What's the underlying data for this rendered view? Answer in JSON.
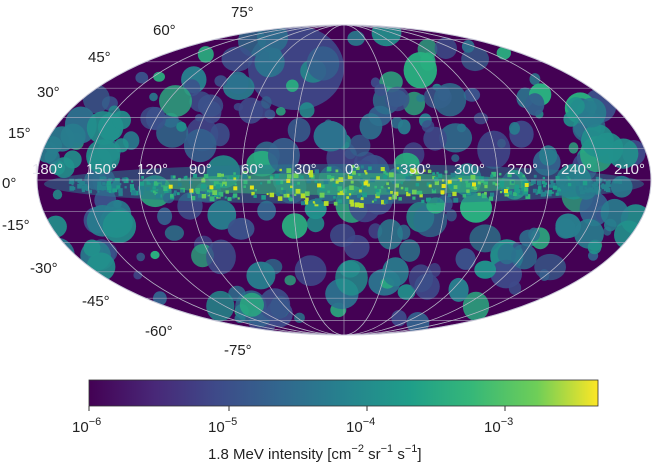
{
  "figure": {
    "latitude_labels": [
      "75°",
      "60°",
      "45°",
      "30°",
      "15°",
      "0°",
      "-15°",
      "-30°",
      "-45°",
      "-60°",
      "-75°"
    ],
    "longitude_labels": [
      "180°",
      "150°",
      "120°",
      "90°",
      "60°",
      "30°",
      "0°",
      "330°",
      "300°",
      "270°",
      "240°",
      "210°"
    ],
    "colorbar": {
      "ticks": [
        {
          "base": "10",
          "exp": "−6"
        },
        {
          "base": "10",
          "exp": "−5"
        },
        {
          "base": "10",
          "exp": "−4"
        },
        {
          "base": "10",
          "exp": "−3"
        }
      ],
      "label_prefix": "1.8 MeV intensity [cm",
      "label_exp1": "−2",
      "label_mid1": " sr",
      "label_exp2": "−1",
      "label_mid2": " s",
      "label_exp3": "−1",
      "label_suffix": "]",
      "scale": "log",
      "range": [
        1e-06,
        0.0055
      ],
      "colormap": "viridis"
    },
    "colors": {
      "background": "#440154",
      "grid": "#b8b8c8"
    }
  }
}
